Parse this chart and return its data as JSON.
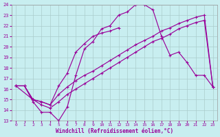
{
  "xlabel": "Windchill (Refroidissement éolien,°C)",
  "bg_color": "#c8eef0",
  "line_color": "#990099",
  "grid_color": "#aacccc",
  "xlim": [
    -0.5,
    23.5
  ],
  "ylim": [
    13,
    24
  ],
  "xticks": [
    0,
    1,
    2,
    3,
    4,
    5,
    6,
    7,
    8,
    9,
    10,
    11,
    12,
    13,
    14,
    15,
    16,
    17,
    18,
    19,
    20,
    21,
    22,
    23
  ],
  "yticks": [
    13,
    14,
    15,
    16,
    17,
    18,
    19,
    20,
    21,
    22,
    23,
    24
  ],
  "curves": [
    {
      "x": [
        0,
        1,
        2,
        3,
        4,
        5,
        6,
        7,
        8,
        9,
        10,
        11,
        12,
        13,
        14,
        15,
        16,
        17,
        18,
        19,
        20,
        21,
        22,
        23
      ],
      "y": [
        16.3,
        16.3,
        14.8,
        13.8,
        13.8,
        13.0,
        14.3,
        17.3,
        19.8,
        20.5,
        21.7,
        22.0,
        23.0,
        23.3,
        24.0,
        24.0,
        23.5,
        21.0,
        19.2,
        19.5,
        18.5,
        17.3,
        17.3,
        16.2
      ]
    },
    {
      "x": [
        0,
        2,
        3,
        4,
        5,
        6,
        7,
        8,
        9,
        10,
        11,
        12
      ],
      "y": [
        16.3,
        15.0,
        14.8,
        14.5,
        16.3,
        17.5,
        19.5,
        20.3,
        21.0,
        21.3,
        21.5,
        21.8
      ]
    },
    {
      "x": [
        0,
        1,
        2,
        3,
        4,
        5,
        6,
        7,
        8,
        9,
        10,
        11,
        12,
        13,
        14,
        15,
        16,
        17,
        18,
        19,
        20,
        21,
        22,
        23
      ],
      "y": [
        16.3,
        16.3,
        15.0,
        14.8,
        14.5,
        15.5,
        16.2,
        16.8,
        17.3,
        17.7,
        18.2,
        18.7,
        19.2,
        19.7,
        20.2,
        20.6,
        21.0,
        21.5,
        21.8,
        22.2,
        22.5,
        22.8,
        23.0,
        16.2
      ]
    },
    {
      "x": [
        0,
        1,
        2,
        3,
        4,
        5,
        6,
        7,
        8,
        9,
        10,
        11,
        12,
        13,
        14,
        15,
        16,
        17,
        18,
        19,
        20,
        21,
        22,
        23
      ],
      "y": [
        16.3,
        16.3,
        15.0,
        14.5,
        14.2,
        14.8,
        15.5,
        16.0,
        16.5,
        17.0,
        17.5,
        18.0,
        18.5,
        19.0,
        19.5,
        20.0,
        20.5,
        20.8,
        21.2,
        21.7,
        22.0,
        22.3,
        22.5,
        16.2
      ]
    }
  ]
}
